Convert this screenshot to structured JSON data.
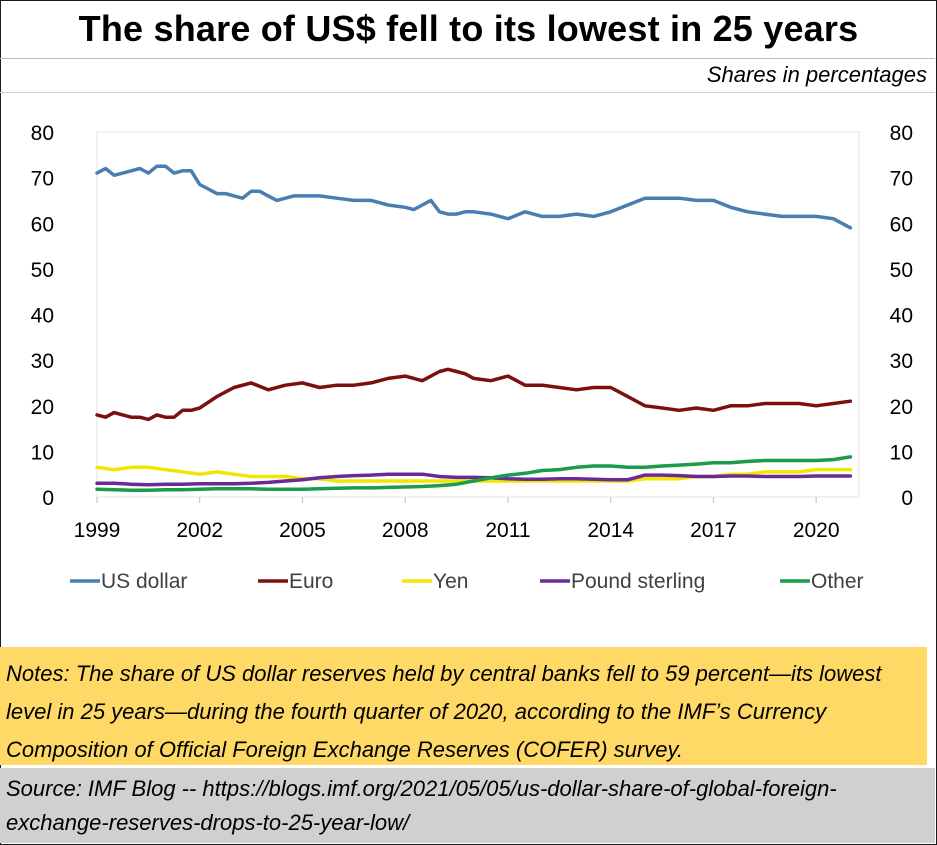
{
  "title": "The share of US$ fell to its lowest in 25 years",
  "subtitle": "Shares in percentages",
  "notes": "Notes: The share of US dollar reserves held by central banks fell to 59 percent—its lowest level in 25 years—during the fourth quarter of 2020, according to the IMF’s Currency Composition of Official Foreign Exchange Reserves (COFER) survey.",
  "source": "Source: IMF Blog -- https://blogs.imf.org/2021/05/05/us-dollar-share-of-global-foreign-exchange-reserves-drops-to-25-year-low/",
  "chart_data": {
    "type": "line",
    "title": "",
    "xlabel": "",
    "ylabel": "",
    "xlim": [
      1999,
      2021.25
    ],
    "ylim": [
      0,
      80
    ],
    "y_ticks": [
      0,
      10,
      20,
      30,
      40,
      50,
      60,
      70,
      80
    ],
    "y_tick_labels_both_sides": true,
    "x_ticks": [
      "1999",
      "2002",
      "2005",
      "2008",
      "2011",
      "2014",
      "2017",
      "2020"
    ],
    "grid": false,
    "legend_position": "bottom",
    "series": [
      {
        "name": "US dollar",
        "color": "#4a7eb0",
        "x": [
          1999,
          1999.25,
          1999.5,
          1999.75,
          2000,
          2000.25,
          2000.5,
          2000.75,
          2001,
          2001.25,
          2001.5,
          2001.75,
          2002,
          2002.25,
          2002.5,
          2002.75,
          2003,
          2003.25,
          2003.5,
          2003.75,
          2004,
          2004.25,
          2004.5,
          2004.75,
          2005,
          2005.5,
          2006,
          2006.5,
          2007,
          2007.5,
          2008,
          2008.25,
          2008.5,
          2008.75,
          2009,
          2009.25,
          2009.5,
          2009.75,
          2010,
          2010.5,
          2011,
          2011.5,
          2012,
          2012.5,
          2013,
          2013.5,
          2014,
          2014.5,
          2015,
          2015.5,
          2016,
          2016.5,
          2017,
          2017.5,
          2018,
          2018.5,
          2019,
          2019.5,
          2020,
          2020.5,
          2021
        ],
        "y": [
          71,
          72,
          70.5,
          71,
          71.5,
          72,
          71,
          72.5,
          72.5,
          71,
          71.5,
          71.5,
          68.5,
          67.5,
          66.5,
          66.5,
          66,
          65.5,
          67,
          67,
          66,
          65,
          65.5,
          66,
          66,
          66,
          65.5,
          65,
          65,
          64,
          63.5,
          63,
          64,
          65,
          62.5,
          62,
          62,
          62.5,
          62.5,
          62,
          61,
          62.5,
          61.5,
          61.5,
          62,
          61.5,
          62.5,
          64,
          65.5,
          65.5,
          65.5,
          65,
          65,
          63.5,
          62.5,
          62,
          61.5,
          61.5,
          61.5,
          61,
          59
        ]
      },
      {
        "name": "Euro",
        "color": "#7b1010",
        "x": [
          1999,
          1999.25,
          1999.5,
          1999.75,
          2000,
          2000.25,
          2000.5,
          2000.75,
          2001,
          2001.25,
          2001.5,
          2001.75,
          2002,
          2002.5,
          2003,
          2003.5,
          2004,
          2004.5,
          2005,
          2005.5,
          2006,
          2006.5,
          2007,
          2007.5,
          2008,
          2008.5,
          2009,
          2009.25,
          2009.5,
          2009.75,
          2010,
          2010.5,
          2011,
          2011.5,
          2012,
          2012.5,
          2013,
          2013.5,
          2014,
          2014.5,
          2015,
          2015.5,
          2016,
          2016.5,
          2017,
          2017.5,
          2018,
          2018.5,
          2019,
          2019.5,
          2020,
          2020.5,
          2021
        ],
        "y": [
          18,
          17.5,
          18.5,
          18,
          17.5,
          17.5,
          17,
          18,
          17.5,
          17.5,
          19,
          19,
          19.5,
          22,
          24,
          25,
          23.5,
          24.5,
          25,
          24,
          24.5,
          24.5,
          25,
          26,
          26.5,
          25.5,
          27.5,
          28,
          27.5,
          27,
          26,
          25.5,
          26.5,
          24.5,
          24.5,
          24,
          23.5,
          24,
          24,
          22,
          20,
          19.5,
          19,
          19.5,
          19,
          20,
          20,
          20.5,
          20.5,
          20.5,
          20,
          20.5,
          21
        ]
      },
      {
        "name": "Yen",
        "color": "#f2e600",
        "x": [
          1999,
          1999.5,
          2000,
          2000.5,
          2001,
          2001.5,
          2002,
          2002.5,
          2003,
          2003.5,
          2004,
          2004.5,
          2005,
          2005.5,
          2006,
          2006.5,
          2007,
          2007.5,
          2008,
          2008.5,
          2009,
          2009.5,
          2010,
          2010.5,
          2011,
          2011.5,
          2012,
          2012.5,
          2013,
          2013.5,
          2014,
          2014.5,
          2015,
          2015.5,
          2016,
          2016.5,
          2017,
          2017.5,
          2018,
          2018.5,
          2019,
          2019.5,
          2020,
          2020.5,
          2021
        ],
        "y": [
          6.5,
          6,
          6.5,
          6.5,
          6,
          5.5,
          5,
          5.5,
          5,
          4.5,
          4.5,
          4.5,
          4,
          4,
          3.5,
          3.5,
          3.5,
          3.5,
          3.5,
          3.5,
          3.5,
          3.5,
          3.5,
          3.5,
          3.5,
          3.5,
          3.5,
          3.5,
          3.5,
          3.5,
          3.5,
          3.5,
          4,
          4,
          4,
          4.5,
          4.5,
          5,
          5,
          5.5,
          5.5,
          5.5,
          6,
          6,
          6
        ]
      },
      {
        "name": "Pound sterling",
        "color": "#6a2a98",
        "x": [
          1999,
          1999.5,
          2000,
          2000.5,
          2001,
          2001.5,
          2002,
          2002.5,
          2003,
          2003.5,
          2004,
          2004.5,
          2005,
          2005.5,
          2006,
          2006.5,
          2007,
          2007.5,
          2008,
          2008.5,
          2009,
          2009.5,
          2010,
          2010.5,
          2011,
          2011.5,
          2012,
          2012.5,
          2013,
          2013.5,
          2014,
          2014.5,
          2015,
          2015.5,
          2016,
          2016.5,
          2017,
          2017.5,
          2018,
          2018.5,
          2019,
          2019.5,
          2020,
          2020.5,
          2021
        ],
        "y": [
          3,
          3,
          2.8,
          2.7,
          2.8,
          2.8,
          2.9,
          2.9,
          2.9,
          3,
          3.2,
          3.5,
          3.8,
          4.2,
          4.5,
          4.7,
          4.8,
          5,
          5,
          5,
          4.5,
          4.3,
          4.3,
          4.2,
          4,
          3.9,
          3.9,
          4,
          4,
          3.9,
          3.8,
          3.8,
          4.8,
          4.8,
          4.7,
          4.5,
          4.5,
          4.6,
          4.6,
          4.5,
          4.5,
          4.5,
          4.6,
          4.6,
          4.6
        ]
      },
      {
        "name": "Other",
        "color": "#1a9c4a",
        "x": [
          1999,
          1999.5,
          2000,
          2000.5,
          2001,
          2001.5,
          2002,
          2002.5,
          2003,
          2003.5,
          2004,
          2004.5,
          2005,
          2005.5,
          2006,
          2006.5,
          2007,
          2007.5,
          2008,
          2008.5,
          2009,
          2009.5,
          2010,
          2010.5,
          2011,
          2011.5,
          2012,
          2012.5,
          2013,
          2013.5,
          2014,
          2014.5,
          2015,
          2015.5,
          2016,
          2016.5,
          2017,
          2017.5,
          2018,
          2018.5,
          2019,
          2019.5,
          2020,
          2020.5,
          2021
        ],
        "y": [
          1.7,
          1.6,
          1.5,
          1.5,
          1.6,
          1.6,
          1.7,
          1.8,
          1.8,
          1.8,
          1.7,
          1.7,
          1.7,
          1.8,
          1.9,
          2,
          2,
          2.1,
          2.2,
          2.3,
          2.5,
          2.8,
          3.5,
          4.2,
          4.8,
          5.2,
          5.8,
          6,
          6.5,
          6.8,
          6.8,
          6.5,
          6.5,
          6.8,
          7,
          7.2,
          7.5,
          7.5,
          7.8,
          8,
          8,
          8,
          8,
          8.2,
          8.8
        ]
      }
    ]
  }
}
